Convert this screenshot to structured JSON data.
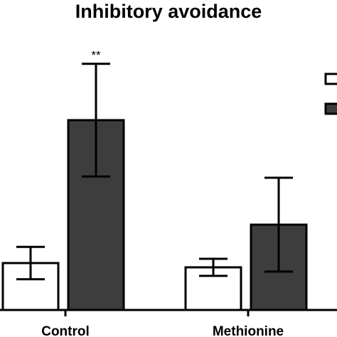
{
  "chart_data": {
    "type": "bar",
    "title": "Inhibitory avoidance",
    "categories": [
      "Control",
      "Methionine"
    ],
    "series": [
      {
        "color": "#ffffff",
        "values": [
          110,
          100
        ],
        "errors": [
          38,
          20
        ]
      },
      {
        "color": "#3d3d3d",
        "values": [
          445,
          200
        ],
        "errors": [
          132,
          110
        ]
      }
    ],
    "annotations": [
      {
        "category": "Control",
        "series": 1,
        "text": "**"
      }
    ],
    "ylim": [
      0,
      600
    ],
    "xlabel": "",
    "ylabel": "",
    "legend": {
      "placement": "top-right"
    },
    "grid": false
  }
}
